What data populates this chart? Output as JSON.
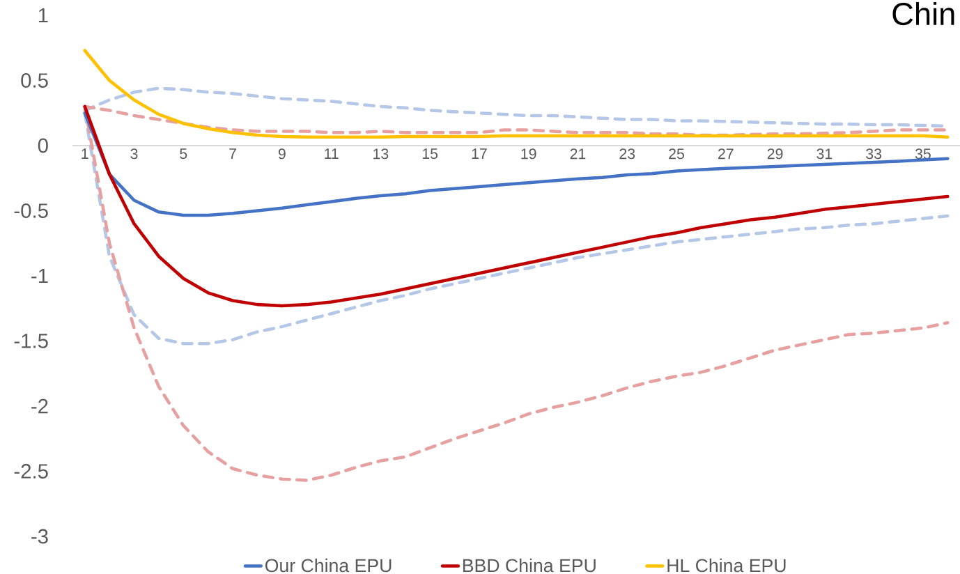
{
  "chart_data": {
    "type": "line",
    "title": "Chin",
    "categories": [
      "1",
      null,
      "3",
      null,
      "5",
      null,
      "7",
      null,
      "9",
      null,
      "11",
      null,
      "13",
      null,
      "15",
      null,
      "17",
      null,
      "19",
      null,
      "21",
      null,
      "23",
      null,
      "25",
      null,
      "27",
      null,
      "29",
      null,
      "31",
      null,
      "33",
      null,
      "35",
      null
    ],
    "ylim": [
      -3,
      1
    ],
    "yticks": [
      -3,
      -2.5,
      -2,
      -1.5,
      -1,
      -0.5,
      0,
      0.5,
      1
    ],
    "grid": false,
    "legend": "bottom",
    "marker": "none",
    "series": [
      {
        "color": "#b4c7e7",
        "line_style": "dashed",
        "values": [
          0.27,
          0.35,
          0.41,
          0.44,
          0.43,
          0.41,
          0.4,
          0.38,
          0.36,
          0.35,
          0.34,
          0.32,
          0.3,
          0.29,
          0.27,
          0.26,
          0.25,
          0.24,
          0.23,
          0.23,
          0.22,
          0.21,
          0.2,
          0.2,
          0.19,
          0.19,
          0.185,
          0.18,
          0.175,
          0.17,
          0.165,
          0.165,
          0.16,
          0.16,
          0.155,
          0.15
        ]
      },
      {
        "color": "#b4c7e7",
        "line_style": "dashed",
        "values": [
          0.25,
          -0.85,
          -1.3,
          -1.48,
          -1.52,
          -1.52,
          -1.49,
          -1.43,
          -1.39,
          -1.34,
          -1.29,
          -1.24,
          -1.19,
          -1.15,
          -1.1,
          -1.06,
          -1.02,
          -0.98,
          -0.94,
          -0.9,
          -0.86,
          -0.83,
          -0.8,
          -0.77,
          -0.74,
          -0.72,
          -0.7,
          -0.68,
          -0.66,
          -0.64,
          -0.63,
          -0.61,
          -0.6,
          -0.58,
          -0.56,
          -0.54
        ]
      },
      {
        "color": "#e6a0a0",
        "line_style": "dashed",
        "values": [
          0.3,
          0.27,
          0.23,
          0.2,
          0.17,
          0.14,
          0.12,
          0.11,
          0.11,
          0.11,
          0.1,
          0.1,
          0.11,
          0.1,
          0.1,
          0.1,
          0.1,
          0.12,
          0.12,
          0.11,
          0.1,
          0.1,
          0.1,
          0.09,
          0.09,
          0.08,
          0.08,
          0.085,
          0.09,
          0.09,
          0.095,
          0.1,
          0.11,
          0.12,
          0.12,
          0.12
        ]
      },
      {
        "color": "#e6a0a0",
        "line_style": "dashed",
        "values": [
          0.3,
          -0.75,
          -1.4,
          -1.85,
          -2.15,
          -2.35,
          -2.48,
          -2.53,
          -2.56,
          -2.57,
          -2.53,
          -2.47,
          -2.42,
          -2.39,
          -2.32,
          -2.25,
          -2.19,
          -2.13,
          -2.06,
          -2.01,
          -1.97,
          -1.92,
          -1.86,
          -1.81,
          -1.77,
          -1.74,
          -1.69,
          -1.63,
          -1.57,
          -1.53,
          -1.49,
          -1.45,
          -1.44,
          -1.42,
          -1.4,
          -1.36
        ]
      },
      {
        "name": "Our China EPU",
        "color": "#4472c4",
        "line_style": "solid",
        "values": [
          0.25,
          -0.22,
          -0.42,
          -0.51,
          -0.535,
          -0.535,
          -0.52,
          -0.5,
          -0.48,
          -0.455,
          -0.43,
          -0.405,
          -0.385,
          -0.37,
          -0.345,
          -0.33,
          -0.315,
          -0.3,
          -0.285,
          -0.27,
          -0.255,
          -0.245,
          -0.225,
          -0.215,
          -0.195,
          -0.185,
          -0.175,
          -0.168,
          -0.16,
          -0.152,
          -0.145,
          -0.137,
          -0.128,
          -0.12,
          -0.11,
          -0.1
        ]
      },
      {
        "name": "BBD China EPU",
        "color": "#c00000",
        "line_style": "solid",
        "values": [
          0.3,
          -0.22,
          -0.6,
          -0.85,
          -1.02,
          -1.13,
          -1.19,
          -1.22,
          -1.23,
          -1.22,
          -1.2,
          -1.17,
          -1.14,
          -1.1,
          -1.06,
          -1.02,
          -0.98,
          -0.94,
          -0.9,
          -0.86,
          -0.82,
          -0.78,
          -0.74,
          -0.7,
          -0.67,
          -0.63,
          -0.6,
          -0.57,
          -0.55,
          -0.52,
          -0.49,
          -0.47,
          -0.45,
          -0.43,
          -0.41,
          -0.39
        ]
      },
      {
        "name": "HL China EPU",
        "color": "#ffc000",
        "line_style": "solid",
        "values": [
          0.73,
          0.5,
          0.35,
          0.24,
          0.17,
          0.13,
          0.1,
          0.08,
          0.07,
          0.065,
          0.065,
          0.065,
          0.065,
          0.07,
          0.07,
          0.07,
          0.07,
          0.075,
          0.075,
          0.075,
          0.075,
          0.075,
          0.075,
          0.075,
          0.075,
          0.075,
          0.075,
          0.075,
          0.075,
          0.075,
          0.075,
          0.075,
          0.075,
          0.075,
          0.075,
          0.065
        ]
      }
    ]
  }
}
